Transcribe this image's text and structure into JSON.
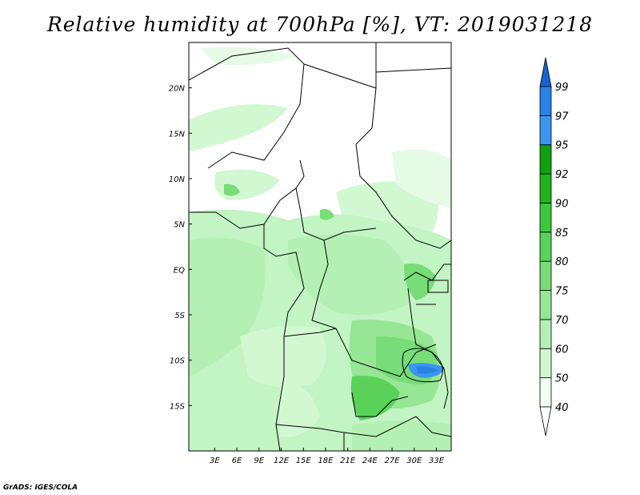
{
  "title": "Relative humidity at 700hPa [%], VT: 2019031218",
  "credit": "GrADS: IGES/COLA",
  "map": {
    "lon_range": [
      -0.5,
      35
    ],
    "lat_range": [
      -20,
      25
    ],
    "lat_ticks": [
      {
        "value": 20,
        "label": "20N"
      },
      {
        "value": 15,
        "label": "15N"
      },
      {
        "value": 10,
        "label": "10N"
      },
      {
        "value": 5,
        "label": "5N"
      },
      {
        "value": 0,
        "label": "EQ"
      },
      {
        "value": -5,
        "label": "5S"
      },
      {
        "value": -10,
        "label": "10S"
      },
      {
        "value": -15,
        "label": "15S"
      }
    ],
    "lon_ticks": [
      {
        "value": 3,
        "label": "3E"
      },
      {
        "value": 6,
        "label": "6E"
      },
      {
        "value": 9,
        "label": "9E"
      },
      {
        "value": 12,
        "label": "12E"
      },
      {
        "value": 15,
        "label": "15E"
      },
      {
        "value": 18,
        "label": "18E"
      },
      {
        "value": 21,
        "label": "21E"
      },
      {
        "value": 24,
        "label": "24E"
      },
      {
        "value": 27,
        "label": "27E"
      },
      {
        "value": 30,
        "label": "30E"
      },
      {
        "value": 33,
        "label": "33E"
      }
    ]
  },
  "colorbar": {
    "levels": [
      "40",
      "50",
      "60",
      "70",
      "75",
      "80",
      "85",
      "90",
      "92",
      "95",
      "97",
      "99"
    ],
    "colors": [
      "#f0fff0",
      "#d2f8d2",
      "#b4f0b4",
      "#96e696",
      "#78dc78",
      "#5ad25a",
      "#3cc83c",
      "#1eb41e",
      "#0fa00f",
      "#3c96f0",
      "#2882e6",
      "#1464d2"
    ],
    "low_color": "#ffffff",
    "high_color": "#1464d2"
  }
}
